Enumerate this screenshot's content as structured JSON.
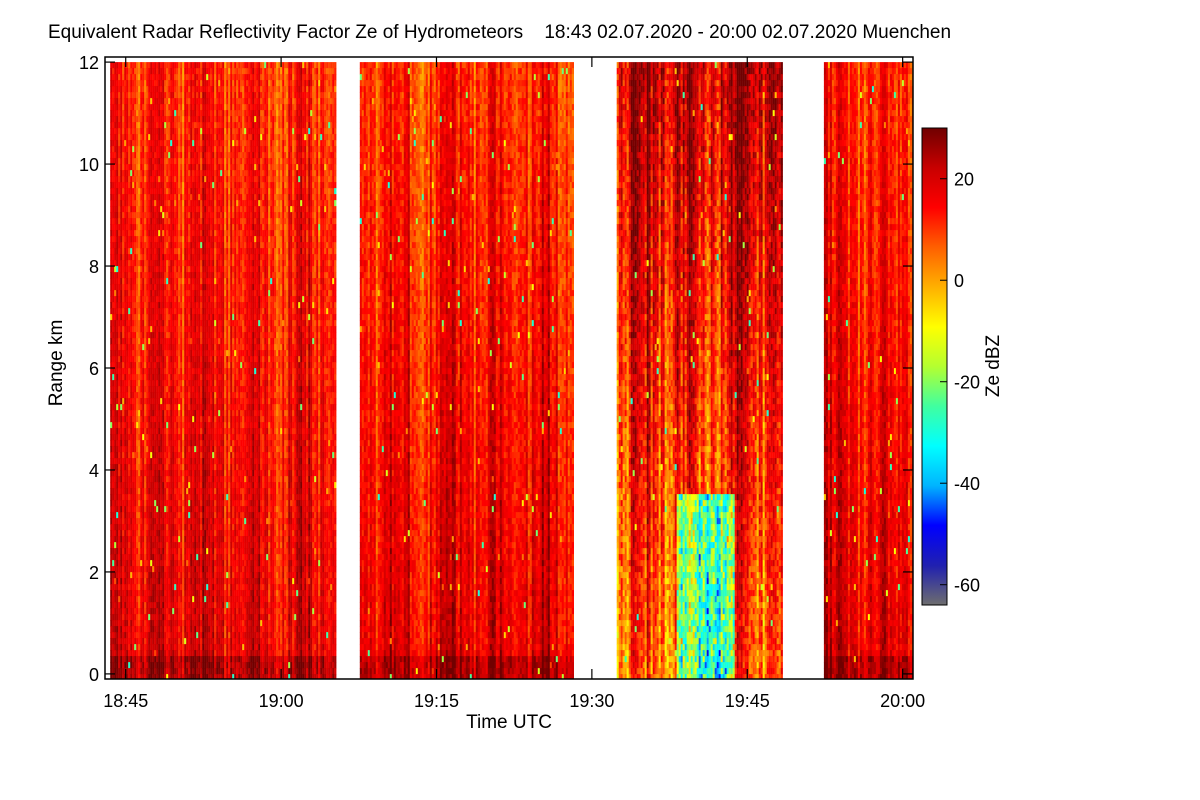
{
  "chart_data": {
    "type": "heatmap",
    "title": "Equivalent Radar Reflectivity Factor Ze of Hydrometeors",
    "time_range": "18:43 02.07.2020 - 20:00 02.07.2020",
    "location": "Muenchen",
    "xlabel": "Time UTC",
    "ylabel": "Range km",
    "xlim_minutes_utc": [
      1123,
      1201
    ],
    "ylim_km": [
      -0.1,
      12.1
    ],
    "x_ticks": [
      {
        "minutes": 1125,
        "label": "18:45"
      },
      {
        "minutes": 1140,
        "label": "19:00"
      },
      {
        "minutes": 1155,
        "label": "19:15"
      },
      {
        "minutes": 1170,
        "label": "19:30"
      },
      {
        "minutes": 1185,
        "label": "19:45"
      },
      {
        "minutes": 1200,
        "label": "20:00"
      }
    ],
    "y_ticks": [
      {
        "km": 0,
        "label": "0"
      },
      {
        "km": 2,
        "label": "2"
      },
      {
        "km": 4,
        "label": "4"
      },
      {
        "km": 6,
        "label": "6"
      },
      {
        "km": 8,
        "label": "8"
      },
      {
        "km": 10,
        "label": "10"
      },
      {
        "km": 12,
        "label": "12"
      }
    ],
    "data_segments_minutes_utc": [
      {
        "start": 1123.5,
        "end": 1145.2,
        "character": "strong"
      },
      {
        "start": 1147.6,
        "end": 1168.2,
        "character": "strong"
      },
      {
        "start": 1172.4,
        "end": 1188.4,
        "character": "mixed"
      },
      {
        "start": 1192.4,
        "end": 1200.9,
        "character": "strong"
      }
    ],
    "colorbar": {
      "label": "Ze dBZ",
      "range_dbz": [
        -64,
        30
      ],
      "ticks": [
        {
          "dbz": -60,
          "label": "-60"
        },
        {
          "dbz": -40,
          "label": "-40"
        },
        {
          "dbz": -20,
          "label": "-20"
        },
        {
          "dbz": 0,
          "label": "0"
        },
        {
          "dbz": 20,
          "label": "20"
        }
      ],
      "colors": [
        "#6e6e6e",
        "#2020b0",
        "#0000ff",
        "#00b4ff",
        "#00ffff",
        "#40ffa0",
        "#b4ff30",
        "#ffff00",
        "#ffb000",
        "#ff6000",
        "#ff0000",
        "#c80000",
        "#700000"
      ]
    }
  }
}
